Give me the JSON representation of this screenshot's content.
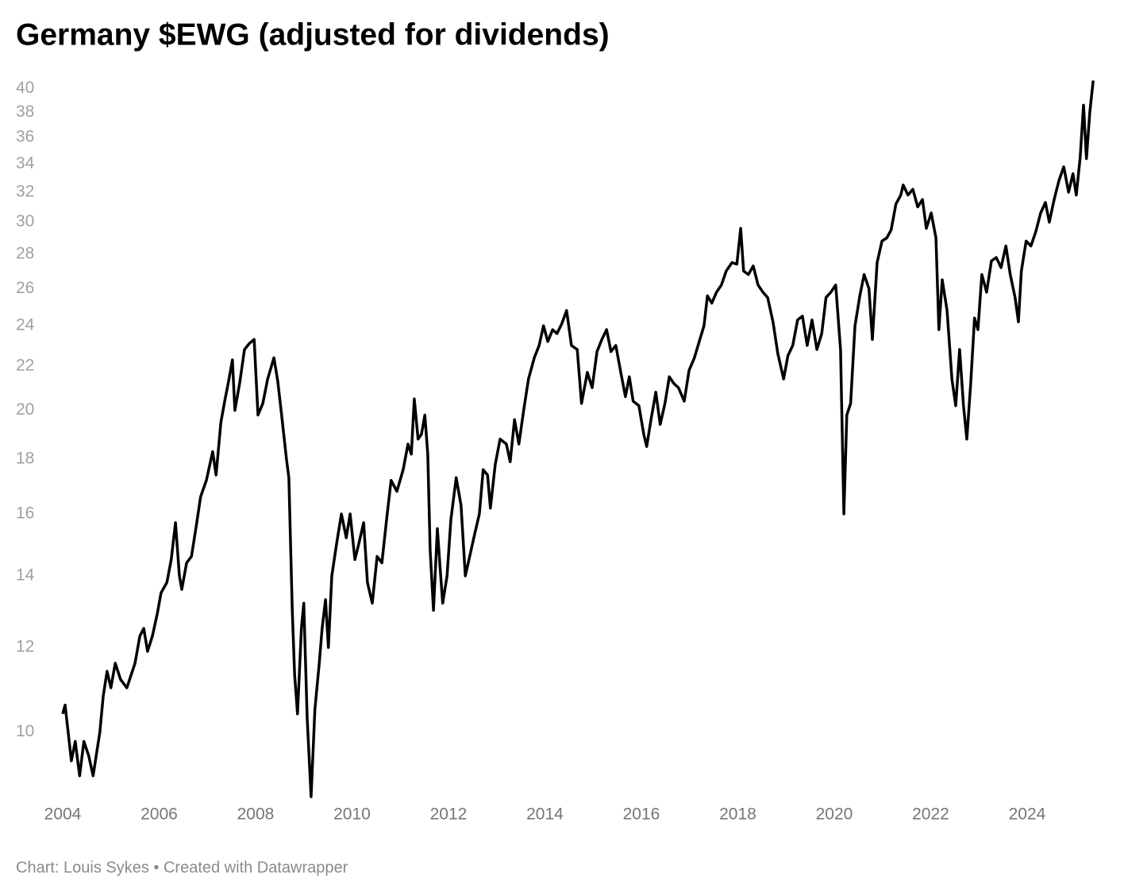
{
  "chart_data": {
    "type": "line",
    "title": "Germany $EWG (adjusted for dividends)",
    "footer": "Chart: Louis Sykes • Created with Datawrapper",
    "yscale": "log",
    "grid": false,
    "xlim": [
      2004,
      2025.4
    ],
    "xticks": [
      2004,
      2006,
      2008,
      2010,
      2012,
      2014,
      2016,
      2018,
      2020,
      2022,
      2024
    ],
    "ylim": [
      8.7,
      40.8
    ],
    "yticks": [
      10,
      12,
      14,
      16,
      18,
      20,
      22,
      24,
      26,
      28,
      30,
      32,
      34,
      36,
      38,
      40
    ],
    "series": [
      {
        "color": "#000000",
        "x": [
          2004.0,
          2004.05,
          2004.18,
          2004.26,
          2004.35,
          2004.44,
          2004.54,
          2004.63,
          2004.71,
          2004.77,
          2004.84,
          2004.92,
          2005.0,
          2005.09,
          2005.2,
          2005.33,
          2005.5,
          2005.6,
          2005.68,
          2005.76,
          2005.86,
          2005.96,
          2006.04,
          2006.16,
          2006.25,
          2006.34,
          2006.42,
          2006.47,
          2006.57,
          2006.67,
          2006.77,
          2006.86,
          2006.98,
          2007.11,
          2007.18,
          2007.28,
          2007.36,
          2007.44,
          2007.52,
          2007.57,
          2007.67,
          2007.77,
          2007.87,
          2007.97,
          2008.05,
          2008.15,
          2008.25,
          2008.38,
          2008.46,
          2008.54,
          2008.64,
          2008.69,
          2008.76,
          2008.81,
          2008.87,
          2008.95,
          2009.0,
          2009.07,
          2009.15,
          2009.23,
          2009.32,
          2009.38,
          2009.45,
          2009.51,
          2009.58,
          2009.68,
          2009.78,
          2009.88,
          2009.96,
          2010.06,
          2010.14,
          2010.24,
          2010.32,
          2010.42,
          2010.52,
          2010.62,
          2010.73,
          2010.81,
          2010.93,
          2011.06,
          2011.16,
          2011.23,
          2011.29,
          2011.37,
          2011.44,
          2011.51,
          2011.57,
          2011.62,
          2011.69,
          2011.77,
          2011.82,
          2011.88,
          2011.97,
          2012.05,
          2012.16,
          2012.26,
          2012.35,
          2012.44,
          2012.54,
          2012.64,
          2012.72,
          2012.81,
          2012.87,
          2012.97,
          2013.07,
          2013.2,
          2013.28,
          2013.37,
          2013.46,
          2013.56,
          2013.66,
          2013.78,
          2013.88,
          2013.97,
          2014.06,
          2014.16,
          2014.25,
          2014.35,
          2014.45,
          2014.55,
          2014.67,
          2014.76,
          2014.88,
          2014.98,
          2015.08,
          2015.18,
          2015.28,
          2015.37,
          2015.47,
          2015.59,
          2015.67,
          2015.75,
          2015.83,
          2015.95,
          2016.05,
          2016.11,
          2016.2,
          2016.3,
          2016.39,
          2016.49,
          2016.58,
          2016.67,
          2016.77,
          2016.89,
          2016.99,
          2017.1,
          2017.2,
          2017.3,
          2017.37,
          2017.46,
          2017.56,
          2017.66,
          2017.76,
          2017.88,
          2017.98,
          2018.06,
          2018.12,
          2018.22,
          2018.32,
          2018.42,
          2018.52,
          2018.62,
          2018.73,
          2018.83,
          2018.95,
          2019.04,
          2019.14,
          2019.24,
          2019.34,
          2019.44,
          2019.54,
          2019.64,
          2019.74,
          2019.83,
          2019.93,
          2020.03,
          2020.13,
          2020.2,
          2020.26,
          2020.34,
          2020.43,
          2020.53,
          2020.62,
          2020.72,
          2020.79,
          2020.89,
          2020.99,
          2021.09,
          2021.18,
          2021.28,
          2021.38,
          2021.43,
          2021.53,
          2021.63,
          2021.73,
          2021.83,
          2021.91,
          2022.01,
          2022.11,
          2022.17,
          2022.24,
          2022.34,
          2022.44,
          2022.52,
          2022.6,
          2022.68,
          2022.75,
          2022.83,
          2022.91,
          2022.98,
          2023.06,
          2023.16,
          2023.26,
          2023.36,
          2023.46,
          2023.56,
          2023.65,
          2023.75,
          2023.82,
          2023.88,
          2023.98,
          2024.08,
          2024.18,
          2024.28,
          2024.38,
          2024.46,
          2024.56,
          2024.66,
          2024.76,
          2024.86,
          2024.95,
          2025.02,
          2025.1,
          2025.17,
          2025.23,
          2025.3,
          2025.37
        ],
        "values": [
          10.4,
          10.6,
          9.4,
          9.8,
          9.1,
          9.8,
          9.5,
          9.1,
          9.6,
          10.0,
          10.8,
          11.4,
          11.0,
          11.6,
          11.2,
          11.0,
          11.6,
          12.3,
          12.5,
          11.9,
          12.3,
          12.9,
          13.5,
          13.8,
          14.5,
          15.7,
          14.0,
          13.6,
          14.4,
          14.6,
          15.6,
          16.6,
          17.2,
          18.3,
          17.4,
          19.5,
          20.4,
          21.3,
          22.3,
          20.0,
          21.2,
          22.8,
          23.1,
          23.3,
          19.8,
          20.3,
          21.4,
          22.4,
          21.3,
          19.8,
          18.0,
          17.3,
          13.0,
          11.3,
          10.4,
          12.5,
          13.2,
          10.3,
          8.7,
          10.5,
          11.6,
          12.5,
          13.3,
          12.0,
          14.0,
          15.0,
          16.0,
          15.2,
          16.0,
          14.5,
          15.0,
          15.7,
          13.8,
          13.2,
          14.6,
          14.4,
          16.0,
          17.2,
          16.8,
          17.6,
          18.6,
          18.2,
          20.5,
          18.8,
          19.0,
          19.8,
          18.2,
          14.8,
          13.0,
          15.5,
          14.4,
          13.2,
          14.0,
          15.8,
          17.3,
          16.3,
          14.0,
          14.6,
          15.3,
          16.0,
          17.6,
          17.4,
          16.2,
          17.8,
          18.8,
          18.6,
          17.9,
          19.6,
          18.6,
          20.0,
          21.4,
          22.4,
          23.0,
          24.0,
          23.2,
          23.8,
          23.6,
          24.1,
          24.8,
          23.0,
          22.8,
          20.3,
          21.7,
          21.0,
          22.7,
          23.3,
          23.8,
          22.7,
          23.0,
          21.5,
          20.6,
          21.5,
          20.4,
          20.2,
          19.0,
          18.5,
          19.6,
          20.8,
          19.4,
          20.3,
          21.5,
          21.2,
          21.0,
          20.4,
          21.8,
          22.4,
          23.2,
          24.0,
          25.6,
          25.2,
          25.8,
          26.2,
          27.0,
          27.5,
          27.4,
          29.6,
          27.0,
          26.8,
          27.3,
          26.2,
          25.8,
          25.5,
          24.2,
          22.6,
          21.4,
          22.5,
          23.0,
          24.3,
          24.5,
          23.0,
          24.3,
          22.8,
          23.6,
          25.5,
          25.8,
          26.2,
          22.8,
          16.0,
          19.8,
          20.3,
          24.0,
          25.6,
          26.8,
          26.0,
          23.3,
          27.5,
          28.8,
          29.0,
          29.5,
          31.2,
          31.8,
          32.5,
          31.8,
          32.2,
          31.0,
          31.5,
          29.6,
          30.6,
          29.0,
          23.8,
          26.5,
          24.8,
          21.4,
          20.2,
          22.8,
          20.2,
          18.8,
          21.2,
          24.4,
          23.8,
          26.8,
          25.8,
          27.6,
          27.8,
          27.2,
          28.5,
          26.8,
          25.5,
          24.2,
          27.0,
          28.8,
          28.5,
          29.4,
          30.6,
          31.3,
          30.0,
          31.5,
          32.8,
          33.8,
          32.0,
          33.3,
          31.8,
          34.5,
          38.6,
          34.4,
          38.0,
          40.7
        ]
      }
    ]
  }
}
